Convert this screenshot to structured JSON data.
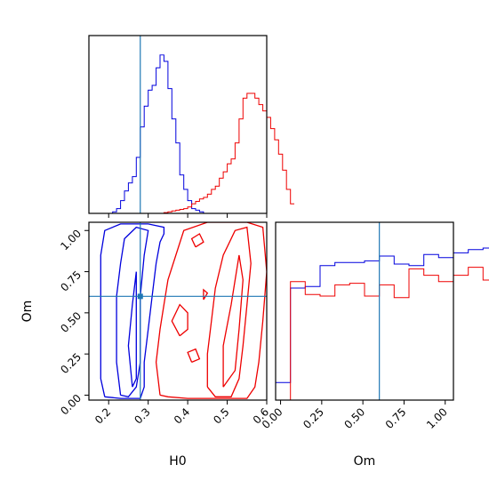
{
  "chart_data": [
    {
      "panel": "H0-marginal",
      "type": "histogram",
      "xlim": [
        0.15,
        0.6
      ],
      "ylim": [
        0,
        1.0
      ],
      "truth_x": 0.28,
      "bin_start": 0.15,
      "bin_width": 0.01,
      "series": [
        {
          "color": "#0000dd",
          "values": [
            0,
            0,
            0,
            0,
            0,
            0,
            0.01,
            0.03,
            0.08,
            0.14,
            0.19,
            0.23,
            0.35,
            0.54,
            0.67,
            0.77,
            0.8,
            0.91,
            0.99,
            0.95,
            0.78,
            0.59,
            0.44,
            0.24,
            0.15,
            0.08,
            0.03,
            0.02,
            0.01,
            0,
            0,
            0,
            0,
            0,
            0,
            0,
            0,
            0,
            0,
            0,
            0,
            0,
            0,
            0,
            0
          ]
        },
        {
          "color": "#ee0000",
          "values": [
            0,
            0,
            0,
            0,
            0,
            0,
            0,
            0,
            0,
            0,
            0,
            0,
            0,
            0,
            0,
            0,
            0,
            0,
            0,
            0.005,
            0.01,
            0.015,
            0.02,
            0.025,
            0.03,
            0.04,
            0.06,
            0.075,
            0.09,
            0.1,
            0.12,
            0.15,
            0.17,
            0.22,
            0.26,
            0.31,
            0.34,
            0.44,
            0.59,
            0.72,
            0.75,
            0.75,
            0.72,
            0.68,
            0.64,
            0.6,
            0.53,
            0.46,
            0.37,
            0.27,
            0.15,
            0.06
          ]
        }
      ]
    },
    {
      "panel": "H0-Om-joint",
      "type": "contour",
      "xlabel": "H0",
      "ylabel": "Om",
      "xlim": [
        0.15,
        0.6
      ],
      "ylim": [
        -0.03,
        1.05
      ],
      "xticks": [
        "0.2",
        "0.3",
        "0.4",
        "0.5",
        "0.6"
      ],
      "xtick_values": [
        0.2,
        0.3,
        0.4,
        0.5,
        0.6
      ],
      "yticks": [
        "0.00",
        "0.25",
        "0.50",
        "0.75",
        "1.00"
      ],
      "ytick_values": [
        0,
        0.25,
        0.5,
        0.75,
        1.0
      ],
      "truth": [
        0.28,
        0.6
      ],
      "contours": [
        {
          "color": "#0000dd",
          "paths": [
            [
              [
                0.19,
                -0.01
              ],
              [
                0.18,
                0.1
              ],
              [
                0.18,
                0.25
              ],
              [
                0.18,
                0.4
              ],
              [
                0.18,
                0.55
              ],
              [
                0.18,
                0.7
              ],
              [
                0.18,
                0.85
              ],
              [
                0.19,
                1.0
              ],
              [
                0.23,
                1.04
              ],
              [
                0.3,
                1.04
              ],
              [
                0.34,
                1.02
              ],
              [
                0.34,
                0.98
              ],
              [
                0.33,
                0.93
              ],
              [
                0.32,
                0.8
              ],
              [
                0.31,
                0.6
              ],
              [
                0.3,
                0.4
              ],
              [
                0.29,
                0.2
              ],
              [
                0.29,
                0.05
              ],
              [
                0.28,
                -0.02
              ],
              [
                0.23,
                -0.02
              ],
              [
                0.19,
                -0.01
              ]
            ],
            [
              [
                0.23,
                0.0
              ],
              [
                0.22,
                0.2
              ],
              [
                0.22,
                0.4
              ],
              [
                0.22,
                0.6
              ],
              [
                0.23,
                0.8
              ],
              [
                0.24,
                0.95
              ],
              [
                0.27,
                1.02
              ],
              [
                0.3,
                1.0
              ],
              [
                0.29,
                0.85
              ],
              [
                0.28,
                0.6
              ],
              [
                0.28,
                0.4
              ],
              [
                0.28,
                0.2
              ],
              [
                0.27,
                0.05
              ],
              [
                0.25,
                -0.01
              ],
              [
                0.23,
                0.0
              ]
            ],
            [
              [
                0.26,
                0.05
              ],
              [
                0.25,
                0.3
              ],
              [
                0.26,
                0.55
              ],
              [
                0.27,
                0.75
              ],
              [
                0.27,
                0.6
              ],
              [
                0.27,
                0.35
              ],
              [
                0.27,
                0.1
              ],
              [
                0.26,
                0.05
              ]
            ]
          ]
        },
        {
          "color": "#ee0000",
          "paths": [
            [
              [
                0.33,
                0.0
              ],
              [
                0.32,
                0.2
              ],
              [
                0.33,
                0.4
              ],
              [
                0.34,
                0.55
              ],
              [
                0.35,
                0.7
              ],
              [
                0.37,
                0.85
              ],
              [
                0.39,
                1.0
              ],
              [
                0.45,
                1.05
              ],
              [
                0.55,
                1.05
              ],
              [
                0.59,
                1.02
              ],
              [
                0.6,
                0.75
              ],
              [
                0.59,
                0.45
              ],
              [
                0.58,
                0.2
              ],
              [
                0.57,
                0.05
              ],
              [
                0.55,
                -0.02
              ],
              [
                0.4,
                -0.02
              ],
              [
                0.35,
                -0.01
              ],
              [
                0.33,
                0.0
              ]
            ],
            [
              [
                0.45,
                0.05
              ],
              [
                0.45,
                0.25
              ],
              [
                0.46,
                0.45
              ],
              [
                0.47,
                0.65
              ],
              [
                0.49,
                0.85
              ],
              [
                0.52,
                1.0
              ],
              [
                0.55,
                1.02
              ],
              [
                0.56,
                0.8
              ],
              [
                0.55,
                0.55
              ],
              [
                0.54,
                0.3
              ],
              [
                0.53,
                0.1
              ],
              [
                0.51,
                -0.01
              ],
              [
                0.47,
                -0.01
              ],
              [
                0.45,
                0.05
              ]
            ],
            [
              [
                0.49,
                0.05
              ],
              [
                0.49,
                0.3
              ],
              [
                0.51,
                0.55
              ],
              [
                0.53,
                0.85
              ],
              [
                0.54,
                0.7
              ],
              [
                0.53,
                0.4
              ],
              [
                0.52,
                0.15
              ],
              [
                0.49,
                0.05
              ]
            ],
            [
              [
                0.38,
                0.36
              ],
              [
                0.36,
                0.45
              ],
              [
                0.38,
                0.55
              ],
              [
                0.4,
                0.5
              ],
              [
                0.4,
                0.4
              ],
              [
                0.38,
                0.36
              ]
            ],
            [
              [
                0.42,
                0.9
              ],
              [
                0.41,
                0.95
              ],
              [
                0.43,
                0.98
              ],
              [
                0.44,
                0.93
              ],
              [
                0.42,
                0.9
              ]
            ],
            [
              [
                0.44,
                0.58
              ],
              [
                0.44,
                0.64
              ],
              [
                0.45,
                0.62
              ],
              [
                0.44,
                0.58
              ]
            ],
            [
              [
                0.41,
                0.2
              ],
              [
                0.4,
                0.26
              ],
              [
                0.42,
                0.28
              ],
              [
                0.43,
                0.22
              ],
              [
                0.41,
                0.2
              ]
            ]
          ]
        }
      ]
    },
    {
      "panel": "Om-marginal",
      "type": "histogram",
      "xlabel": "Om",
      "xlim": [
        -0.03,
        1.05
      ],
      "ylim": [
        0,
        1.0
      ],
      "xticks": [
        "0.00",
        "0.25",
        "0.50",
        "0.75",
        "1.00"
      ],
      "xtick_values": [
        0,
        0.25,
        0.5,
        0.75,
        1.0
      ],
      "truth_x": 0.6,
      "bin_start": -0.03,
      "bin_width": 0.045,
      "series": [
        {
          "color": "#0000dd",
          "values": [
            0.11,
            0.11,
            0.7,
            0.7,
            0.71,
            0.71,
            0.84,
            0.84,
            0.86,
            0.86,
            0.86,
            0.86,
            0.87,
            0.87,
            0.9,
            0.9,
            0.85,
            0.85,
            0.84,
            0.84,
            0.91,
            0.91,
            0.89,
            0.89,
            0.92,
            0.92,
            0.94,
            0.94,
            0.95,
            0.95,
            0.93,
            0.93,
            0.95,
            0.95,
            0.9,
            0.9,
            0.97,
            0.97,
            0.94,
            0.94,
            0.88,
            0.88,
            0.05,
            0.05
          ]
        },
        {
          "color": "#ee0000",
          "values": [
            0.0,
            0.0,
            0.74,
            0.74,
            0.66,
            0.66,
            0.65,
            0.65,
            0.72,
            0.72,
            0.73,
            0.73,
            0.65,
            0.65,
            0.72,
            0.72,
            0.64,
            0.64,
            0.82,
            0.82,
            0.78,
            0.78,
            0.74,
            0.74,
            0.78,
            0.78,
            0.83,
            0.83,
            0.75,
            0.75,
            0.88,
            0.88,
            0.77,
            0.77,
            0.85,
            0.85,
            0.85,
            0.85,
            0.85,
            0.85,
            0.84,
            0.84,
            0.0,
            0.0
          ]
        }
      ]
    }
  ]
}
